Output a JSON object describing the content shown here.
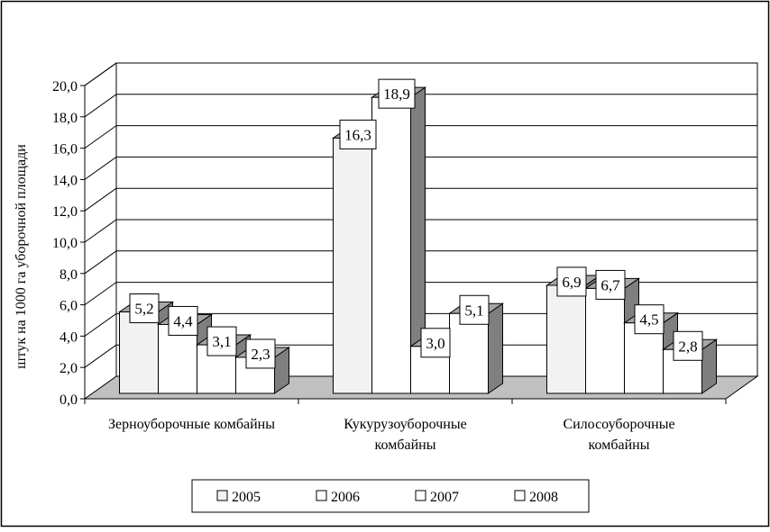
{
  "chart_data": {
    "type": "bar",
    "title": "",
    "ylabel": "штук на 1000 га уборочной площади",
    "xlabel": "",
    "ylim": [
      0,
      20
    ],
    "y_ticks": [
      "0,0",
      "2,0",
      "4,0",
      "6,0",
      "8,0",
      "10,0",
      "12,0",
      "14,0",
      "16,0",
      "18,0",
      "20,0"
    ],
    "grid": true,
    "legend_position": "bottom",
    "categories": [
      [
        "Зерноуборочные комбайны"
      ],
      [
        "Кукурузоуборочные",
        "комбайны"
      ],
      [
        "Силосоуборочные",
        "комбайны"
      ]
    ],
    "series": [
      {
        "name": "2005",
        "values": [
          5.2,
          16.3,
          6.9
        ],
        "labels": [
          "5,2",
          "16,3",
          "6,9"
        ],
        "color": "#f2f2f2"
      },
      {
        "name": "2006",
        "values": [
          4.4,
          18.9,
          6.7
        ],
        "labels": [
          "4,4",
          "18,9",
          "6,7"
        ],
        "color": "#ffffff"
      },
      {
        "name": "2007",
        "values": [
          3.1,
          3.0,
          4.5
        ],
        "labels": [
          "3,1",
          "3,0",
          "4,5"
        ],
        "color": "#ffffff"
      },
      {
        "name": "2008",
        "values": [
          2.3,
          5.1,
          2.8
        ],
        "labels": [
          "2,3",
          "5,1",
          "2,8"
        ],
        "color": "#ffffff"
      }
    ],
    "colors": {
      "floor": "#c0c0c0",
      "bar_side": "#7f7f7f",
      "bar_top": "#a6a6a6",
      "wall": "#ffffff"
    }
  }
}
